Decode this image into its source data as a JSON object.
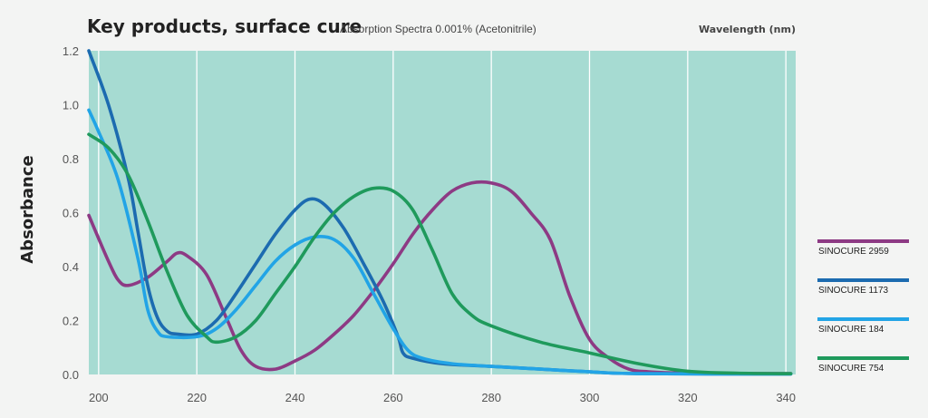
{
  "chart_data": {
    "type": "line",
    "title": "Key products, surface cure",
    "subtitle": "Absorption Spectra 0.001% (Acetonitrile)",
    "xlabel": "Wavelength (nm)",
    "ylabel": "Absorbance",
    "xlim": [
      198,
      342
    ],
    "ylim": [
      0,
      1.2
    ],
    "x_ticks": [
      200,
      220,
      240,
      260,
      280,
      300,
      320,
      340
    ],
    "y_ticks": [
      0.0,
      0.2,
      0.4,
      0.6,
      0.8,
      1.0,
      1.2
    ],
    "y_tick_labels": [
      "0.0",
      "0.2",
      "0.4",
      "0.6",
      "0.8",
      "1.0",
      "1.2"
    ],
    "grid": true,
    "background_color": "#a6dbd2",
    "legend_position": "right",
    "series": [
      {
        "name": "SINOCURE 2959",
        "color": "#8d3a84",
        "points": [
          [
            198,
            0.59
          ],
          [
            202,
            0.42
          ],
          [
            204,
            0.35
          ],
          [
            206,
            0.33
          ],
          [
            210,
            0.36
          ],
          [
            214,
            0.42
          ],
          [
            216,
            0.45
          ],
          [
            218,
            0.44
          ],
          [
            222,
            0.37
          ],
          [
            226,
            0.21
          ],
          [
            229,
            0.09
          ],
          [
            232,
            0.03
          ],
          [
            236,
            0.02
          ],
          [
            240,
            0.05
          ],
          [
            244,
            0.09
          ],
          [
            248,
            0.15
          ],
          [
            252,
            0.22
          ],
          [
            256,
            0.31
          ],
          [
            260,
            0.41
          ],
          [
            264,
            0.52
          ],
          [
            268,
            0.61
          ],
          [
            272,
            0.68
          ],
          [
            276,
            0.71
          ],
          [
            280,
            0.71
          ],
          [
            284,
            0.68
          ],
          [
            288,
            0.6
          ],
          [
            292,
            0.5
          ],
          [
            296,
            0.29
          ],
          [
            300,
            0.13
          ],
          [
            304,
            0.06
          ],
          [
            308,
            0.02
          ],
          [
            312,
            0.01
          ],
          [
            320,
            0.005
          ],
          [
            341,
            0.003
          ]
        ]
      },
      {
        "name": "SINOCURE 1173",
        "color": "#1c6bb0",
        "points": [
          [
            198,
            1.2
          ],
          [
            202,
            1.0
          ],
          [
            206,
            0.73
          ],
          [
            208,
            0.53
          ],
          [
            210,
            0.33
          ],
          [
            212,
            0.21
          ],
          [
            214,
            0.16
          ],
          [
            216,
            0.15
          ],
          [
            220,
            0.15
          ],
          [
            224,
            0.2
          ],
          [
            228,
            0.3
          ],
          [
            232,
            0.41
          ],
          [
            236,
            0.52
          ],
          [
            240,
            0.61
          ],
          [
            243,
            0.65
          ],
          [
            246,
            0.63
          ],
          [
            250,
            0.54
          ],
          [
            254,
            0.41
          ],
          [
            258,
            0.27
          ],
          [
            261,
            0.14
          ],
          [
            262,
            0.08
          ],
          [
            264,
            0.06
          ],
          [
            270,
            0.04
          ],
          [
            280,
            0.03
          ],
          [
            290,
            0.02
          ],
          [
            300,
            0.01
          ],
          [
            310,
            0.003
          ],
          [
            341,
            0.002
          ]
        ]
      },
      {
        "name": "SINOCURE 184",
        "color": "#22a4e6",
        "points": [
          [
            198,
            0.98
          ],
          [
            200,
            0.9
          ],
          [
            204,
            0.72
          ],
          [
            208,
            0.43
          ],
          [
            210,
            0.24
          ],
          [
            212,
            0.16
          ],
          [
            214,
            0.14
          ],
          [
            220,
            0.14
          ],
          [
            224,
            0.17
          ],
          [
            228,
            0.24
          ],
          [
            232,
            0.33
          ],
          [
            236,
            0.42
          ],
          [
            240,
            0.48
          ],
          [
            244,
            0.51
          ],
          [
            248,
            0.5
          ],
          [
            252,
            0.43
          ],
          [
            256,
            0.3
          ],
          [
            260,
            0.17
          ],
          [
            263,
            0.09
          ],
          [
            266,
            0.06
          ],
          [
            272,
            0.04
          ],
          [
            280,
            0.03
          ],
          [
            290,
            0.02
          ],
          [
            300,
            0.01
          ],
          [
            310,
            0.003
          ],
          [
            341,
            0.002
          ]
        ]
      },
      {
        "name": "SINOCURE 754",
        "color": "#1f9a5c",
        "points": [
          [
            198,
            0.89
          ],
          [
            202,
            0.84
          ],
          [
            206,
            0.74
          ],
          [
            210,
            0.57
          ],
          [
            214,
            0.38
          ],
          [
            218,
            0.22
          ],
          [
            222,
            0.14
          ],
          [
            224,
            0.12
          ],
          [
            228,
            0.14
          ],
          [
            232,
            0.2
          ],
          [
            236,
            0.3
          ],
          [
            240,
            0.4
          ],
          [
            244,
            0.51
          ],
          [
            248,
            0.6
          ],
          [
            252,
            0.66
          ],
          [
            256,
            0.69
          ],
          [
            260,
            0.68
          ],
          [
            264,
            0.61
          ],
          [
            268,
            0.46
          ],
          [
            272,
            0.3
          ],
          [
            276,
            0.22
          ],
          [
            280,
            0.18
          ],
          [
            290,
            0.12
          ],
          [
            300,
            0.08
          ],
          [
            310,
            0.04
          ],
          [
            320,
            0.012
          ],
          [
            330,
            0.005
          ],
          [
            341,
            0.003
          ]
        ]
      }
    ]
  }
}
